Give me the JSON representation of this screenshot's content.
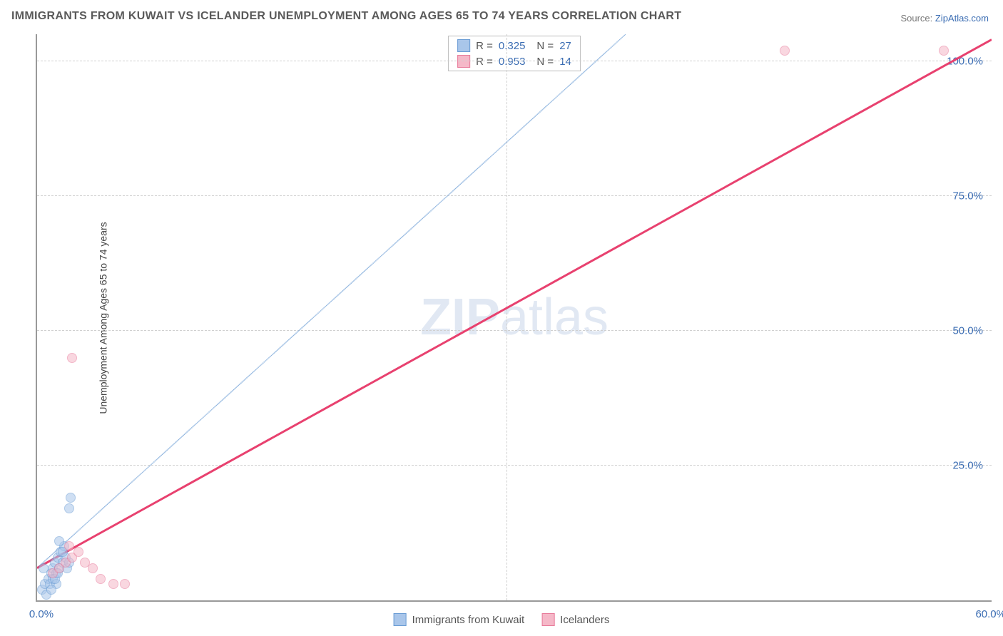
{
  "title": "IMMIGRANTS FROM KUWAIT VS ICELANDER UNEMPLOYMENT AMONG AGES 65 TO 74 YEARS CORRELATION CHART",
  "source_prefix": "Source: ",
  "source_name": "ZipAtlas.com",
  "ylabel": "Unemployment Among Ages 65 to 74 years",
  "watermark_bold": "ZIP",
  "watermark_rest": "atlas",
  "chart": {
    "type": "scatter",
    "xlim": [
      0,
      60
    ],
    "ylim": [
      0,
      105
    ],
    "xticks": [
      0,
      60
    ],
    "xtick_labels": [
      "0.0%",
      "60.0%"
    ],
    "yticks": [
      25,
      50,
      75,
      100
    ],
    "ytick_labels": [
      "25.0%",
      "50.0%",
      "75.0%",
      "100.0%"
    ],
    "grid_x_positions": [
      29.5
    ],
    "grid_y_positions": [
      25,
      50,
      75,
      100
    ],
    "background_color": "#ffffff",
    "grid_color": "#d0d0d0",
    "axis_color": "#999999",
    "tick_label_color": "#3b6db3",
    "tick_label_fontsize": 15,
    "title_color": "#5a5a5a",
    "title_fontsize": 16,
    "series": [
      {
        "name": "Immigrants from Kuwait",
        "color_fill": "#a9c6ea",
        "color_stroke": "#6a9cd4",
        "fill_opacity": 0.55,
        "marker_radius": 7,
        "r": 0.325,
        "n": 27,
        "trend": {
          "x1": 0,
          "y1": 6,
          "x2": 37,
          "y2": 105,
          "dash": "6,5",
          "width": 1.5,
          "color": "#6a9cd4"
        },
        "points": [
          {
            "x": 0.3,
            "y": 2
          },
          {
            "x": 0.5,
            "y": 3
          },
          {
            "x": 0.7,
            "y": 4
          },
          {
            "x": 0.9,
            "y": 5
          },
          {
            "x": 1.0,
            "y": 6
          },
          {
            "x": 1.1,
            "y": 7
          },
          {
            "x": 1.2,
            "y": 5
          },
          {
            "x": 1.3,
            "y": 8
          },
          {
            "x": 1.4,
            "y": 6
          },
          {
            "x": 1.5,
            "y": 9
          },
          {
            "x": 1.6,
            "y": 7
          },
          {
            "x": 1.7,
            "y": 10
          },
          {
            "x": 0.6,
            "y": 1
          },
          {
            "x": 0.8,
            "y": 3
          },
          {
            "x": 1.0,
            "y": 4
          },
          {
            "x": 1.2,
            "y": 3
          },
          {
            "x": 1.8,
            "y": 8
          },
          {
            "x": 1.9,
            "y": 6
          },
          {
            "x": 2.0,
            "y": 7
          },
          {
            "x": 1.1,
            "y": 4
          },
          {
            "x": 0.4,
            "y": 6
          },
          {
            "x": 0.9,
            "y": 2
          },
          {
            "x": 1.3,
            "y": 5
          },
          {
            "x": 1.6,
            "y": 9
          },
          {
            "x": 2.0,
            "y": 17
          },
          {
            "x": 2.1,
            "y": 19
          },
          {
            "x": 1.4,
            "y": 11
          }
        ]
      },
      {
        "name": "Icelanders",
        "color_fill": "#f5b8c8",
        "color_stroke": "#e87a9a",
        "fill_opacity": 0.55,
        "marker_radius": 7,
        "r": 0.953,
        "n": 14,
        "trend": {
          "x1": 0,
          "y1": 6,
          "x2": 60,
          "y2": 104,
          "dash": "none",
          "width": 3,
          "color": "#e8416f"
        },
        "points": [
          {
            "x": 47,
            "y": 102
          },
          {
            "x": 57,
            "y": 102
          },
          {
            "x": 2.2,
            "y": 45
          },
          {
            "x": 1.0,
            "y": 5
          },
          {
            "x": 1.4,
            "y": 6
          },
          {
            "x": 1.8,
            "y": 7
          },
          {
            "x": 2.2,
            "y": 8
          },
          {
            "x": 2.6,
            "y": 9
          },
          {
            "x": 3.0,
            "y": 7
          },
          {
            "x": 3.5,
            "y": 6
          },
          {
            "x": 4.0,
            "y": 4
          },
          {
            "x": 4.8,
            "y": 3
          },
          {
            "x": 5.5,
            "y": 3
          },
          {
            "x": 2.0,
            "y": 10
          }
        ]
      }
    ],
    "legend_top": {
      "r_label": "R =",
      "n_label": "N ="
    },
    "legend_bottom_labels": [
      "Immigrants from Kuwait",
      "Icelanders"
    ]
  }
}
